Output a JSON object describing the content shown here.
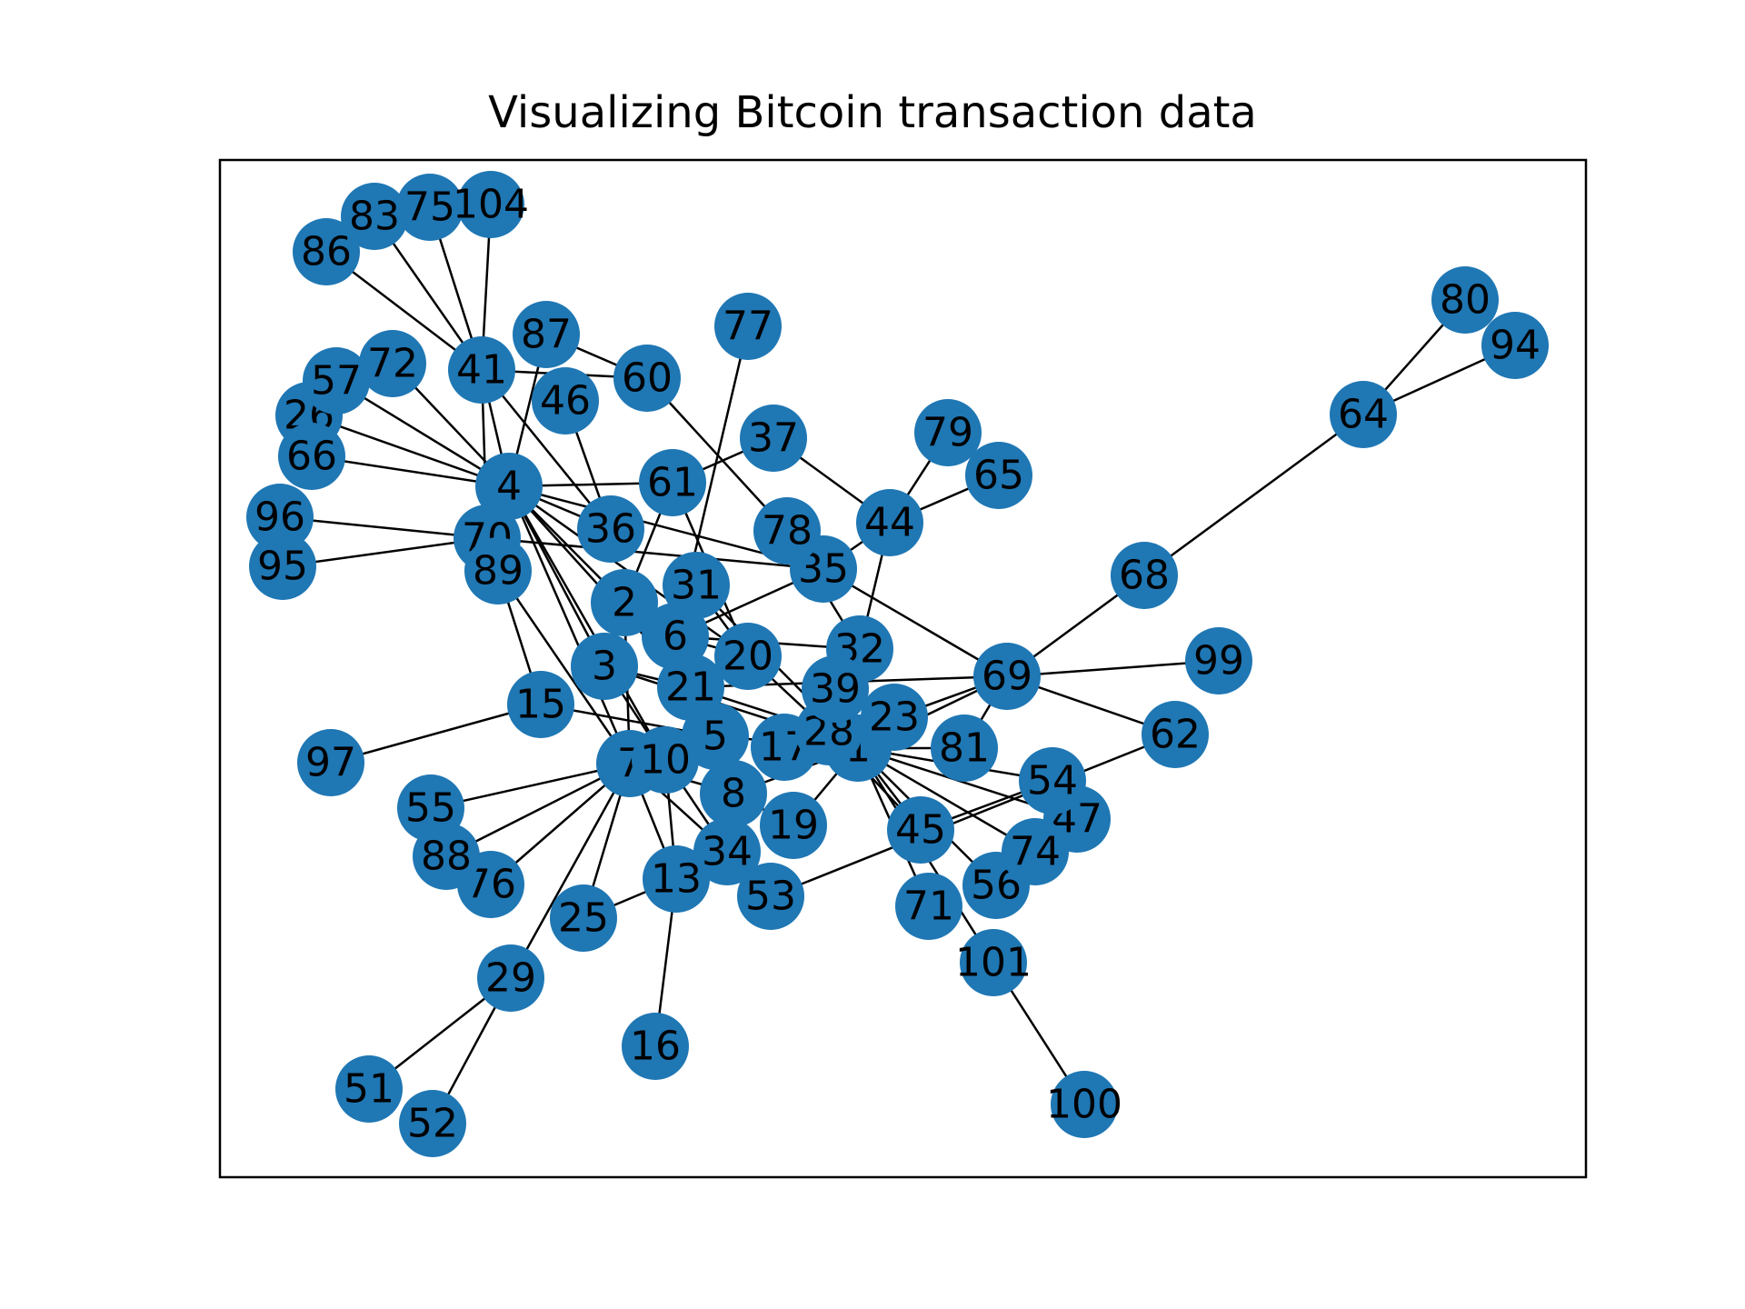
{
  "title": "Visualizing Bitcoin transaction data",
  "node_color": "#1f77b4",
  "edge_color": "#000000",
  "nodes": [
    "1",
    "2",
    "3",
    "4",
    "5",
    "6",
    "7",
    "8",
    "10",
    "13",
    "15",
    "16",
    "17",
    "19",
    "20",
    "21",
    "23",
    "25",
    "26",
    "28",
    "29",
    "31",
    "32",
    "34",
    "35",
    "36",
    "37",
    "39",
    "41",
    "44",
    "45",
    "46",
    "47",
    "51",
    "52",
    "53",
    "54",
    "55",
    "56",
    "57",
    "60",
    "61",
    "62",
    "64",
    "65",
    "66",
    "68",
    "69",
    "70",
    "71",
    "72",
    "74",
    "75",
    "76",
    "77",
    "78",
    "79",
    "80",
    "81",
    "83",
    "86",
    "87",
    "88",
    "89",
    "94",
    "95",
    "96",
    "97",
    "99",
    "100",
    "101",
    "104"
  ],
  "edges": [
    [
      "41",
      "86"
    ],
    [
      "41",
      "83"
    ],
    [
      "41",
      "75"
    ],
    [
      "41",
      "104"
    ],
    [
      "41",
      "60"
    ],
    [
      "41",
      "4"
    ],
    [
      "41",
      "36"
    ],
    [
      "41",
      "70"
    ],
    [
      "87",
      "60"
    ],
    [
      "87",
      "4"
    ],
    [
      "46",
      "36"
    ],
    [
      "4",
      "57"
    ],
    [
      "4",
      "72"
    ],
    [
      "4",
      "26"
    ],
    [
      "4",
      "66"
    ],
    [
      "4",
      "61"
    ],
    [
      "4",
      "70"
    ],
    [
      "4",
      "36"
    ],
    [
      "4",
      "2"
    ],
    [
      "4",
      "3"
    ],
    [
      "4",
      "20"
    ],
    [
      "4",
      "35"
    ],
    [
      "4",
      "7"
    ],
    [
      "4",
      "21"
    ],
    [
      "4",
      "10"
    ],
    [
      "70",
      "96"
    ],
    [
      "70",
      "95"
    ],
    [
      "70",
      "35"
    ],
    [
      "70",
      "89"
    ],
    [
      "89",
      "15"
    ],
    [
      "89",
      "7"
    ],
    [
      "61",
      "37"
    ],
    [
      "61",
      "2"
    ],
    [
      "61",
      "20"
    ],
    [
      "77",
      "6"
    ],
    [
      "60",
      "78"
    ],
    [
      "78",
      "32"
    ],
    [
      "37",
      "44"
    ],
    [
      "44",
      "79"
    ],
    [
      "44",
      "65"
    ],
    [
      "44",
      "35"
    ],
    [
      "44",
      "32"
    ],
    [
      "35",
      "6"
    ],
    [
      "35",
      "69"
    ],
    [
      "2",
      "7"
    ],
    [
      "3",
      "10"
    ],
    [
      "3",
      "21"
    ],
    [
      "3",
      "1"
    ],
    [
      "6",
      "20"
    ],
    [
      "6",
      "5"
    ],
    [
      "6",
      "32"
    ],
    [
      "31",
      "20"
    ],
    [
      "31",
      "1"
    ],
    [
      "20",
      "28"
    ],
    [
      "21",
      "28"
    ],
    [
      "21",
      "69"
    ],
    [
      "39",
      "1"
    ],
    [
      "28",
      "1"
    ],
    [
      "28",
      "45"
    ],
    [
      "1",
      "23"
    ],
    [
      "1",
      "81"
    ],
    [
      "1",
      "69"
    ],
    [
      "1",
      "54"
    ],
    [
      "1",
      "47"
    ],
    [
      "1",
      "74"
    ],
    [
      "1",
      "56"
    ],
    [
      "1",
      "45"
    ],
    [
      "1",
      "71"
    ],
    [
      "1",
      "101"
    ],
    [
      "1",
      "8"
    ],
    [
      "1",
      "19"
    ],
    [
      "1",
      "17"
    ],
    [
      "1",
      "5"
    ],
    [
      "23",
      "69"
    ],
    [
      "23",
      "39"
    ],
    [
      "69",
      "68"
    ],
    [
      "69",
      "99"
    ],
    [
      "69",
      "62"
    ],
    [
      "69",
      "81"
    ],
    [
      "68",
      "64"
    ],
    [
      "64",
      "80"
    ],
    [
      "64",
      "94"
    ],
    [
      "62",
      "53"
    ],
    [
      "54",
      "45"
    ],
    [
      "101",
      "100"
    ],
    [
      "15",
      "97"
    ],
    [
      "15",
      "5"
    ],
    [
      "7",
      "55"
    ],
    [
      "7",
      "88"
    ],
    [
      "7",
      "76"
    ],
    [
      "7",
      "25"
    ],
    [
      "7",
      "29"
    ],
    [
      "7",
      "13"
    ],
    [
      "7",
      "34"
    ],
    [
      "7",
      "8"
    ],
    [
      "7",
      "10"
    ],
    [
      "10",
      "5"
    ],
    [
      "10",
      "34"
    ],
    [
      "5",
      "8"
    ],
    [
      "8",
      "34"
    ],
    [
      "8",
      "19"
    ],
    [
      "13",
      "16"
    ],
    [
      "13",
      "25"
    ],
    [
      "13",
      "10"
    ],
    [
      "13",
      "34"
    ],
    [
      "29",
      "51"
    ],
    [
      "29",
      "52"
    ]
  ]
}
